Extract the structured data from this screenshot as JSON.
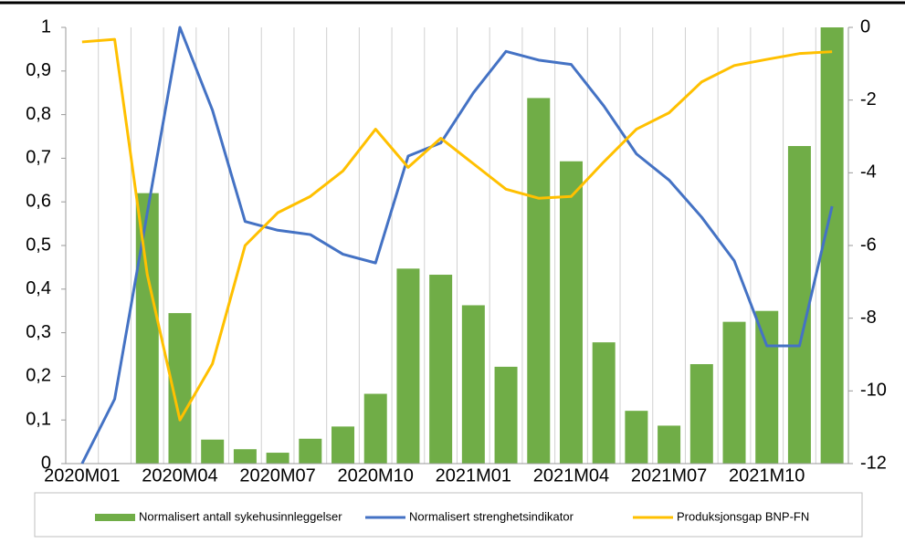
{
  "chart_data": {
    "type": "bar-line",
    "categories": [
      "2020M01",
      null,
      null,
      "2020M04",
      null,
      null,
      "2020M07",
      null,
      null,
      "2020M10",
      null,
      null,
      "2021M01",
      null,
      null,
      "2021M04",
      null,
      null,
      "2021M07",
      null,
      null,
      "2021M10",
      null,
      null
    ],
    "series": [
      {
        "name": "Normalisert antall sykehusinnleggelser",
        "type": "bar",
        "color": "#70ad47",
        "axis": "y",
        "values": [
          0,
          0,
          0.62,
          0.345,
          0.055,
          0.033,
          0.025,
          0.057,
          0.085,
          0.16,
          0.447,
          0.433,
          0.363,
          0.222,
          0.838,
          0.693,
          0.278,
          0.121,
          0.087,
          0.228,
          0.325,
          0.35,
          0.728,
          1.0
        ]
      },
      {
        "name": "Normalisert strenghetsindikator",
        "type": "line",
        "color": "#4472c4",
        "axis": "y",
        "values": [
          0,
          0.148,
          0.575,
          1.0,
          0.81,
          0.555,
          0.535,
          0.525,
          0.48,
          0.46,
          0.705,
          0.735,
          0.85,
          0.945,
          0.925,
          0.915,
          0.82,
          0.71,
          0.65,
          0.565,
          0.465,
          0.27,
          0.27,
          0.59
        ]
      },
      {
        "name": "Produksjonsgap BNP-FN",
        "type": "line",
        "color": "#ffc000",
        "axis": "y2",
        "values": [
          -0.4,
          -0.33,
          -6.8,
          -10.8,
          -9.25,
          -6.0,
          -5.1,
          -4.65,
          -3.95,
          -2.8,
          -3.85,
          -3.05,
          -3.75,
          -4.45,
          -4.7,
          -4.65,
          -3.7,
          -2.8,
          -2.35,
          -1.5,
          -1.05,
          -0.88,
          -0.72,
          -0.67
        ]
      }
    ],
    "ylim": [
      0,
      1
    ],
    "yticks": [
      0,
      {
        "value": 0.1,
        "label": "0,1"
      },
      {
        "value": 0.2,
        "label": "0,2"
      },
      {
        "value": 0.3,
        "label": "0,3"
      },
      {
        "value": 0.4,
        "label": "0,4"
      },
      {
        "value": 0.5,
        "label": "0,5"
      },
      {
        "value": 0.6,
        "label": "0,6"
      },
      {
        "value": 0.7,
        "label": "0,7"
      },
      {
        "value": 0.8,
        "label": "0,8"
      },
      {
        "value": 0.9,
        "label": "0,9"
      },
      1
    ],
    "y2lim": [
      -12,
      0
    ],
    "y2ticks": [
      0,
      -2,
      -4,
      -6,
      -8,
      -10,
      -12
    ],
    "grid": "x",
    "legend": "bottom"
  }
}
